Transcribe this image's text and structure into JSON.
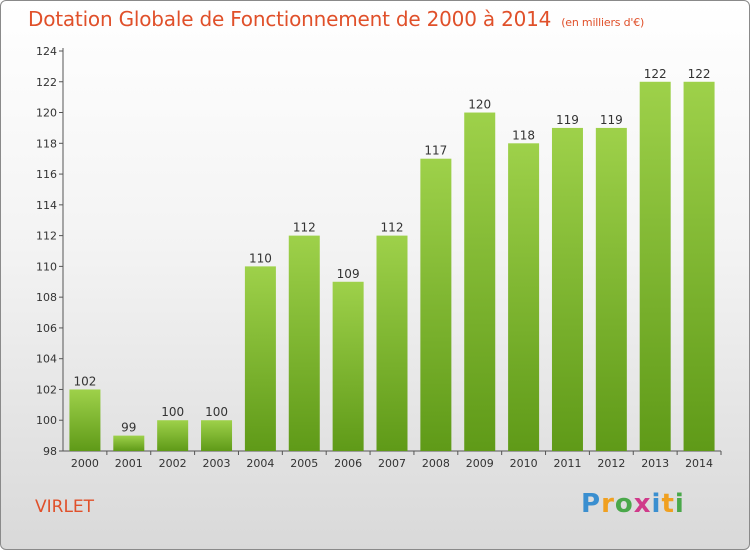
{
  "title": "Dotation Globale de Fonctionnement de 2000 à 2014",
  "subtitle": "(en milliers d'€)",
  "commune": "VIRLET",
  "logo": "Proxiti",
  "chart_data": {
    "type": "bar",
    "title": "Dotation Globale de Fonctionnement de 2000 à 2014",
    "subtitle": "(en milliers d'€)",
    "categories": [
      "2000",
      "2001",
      "2002",
      "2003",
      "2004",
      "2005",
      "2006",
      "2007",
      "2008",
      "2009",
      "2010",
      "2011",
      "2012",
      "2013",
      "2014"
    ],
    "values": [
      102,
      99,
      100,
      100,
      110,
      112,
      109,
      112,
      117,
      120,
      118,
      119,
      119,
      122,
      122
    ],
    "ylim": [
      98,
      124
    ],
    "yticks": [
      98,
      100,
      102,
      104,
      106,
      108,
      110,
      112,
      114,
      116,
      118,
      120,
      122,
      124
    ],
    "xlabel": "",
    "ylabel": "",
    "grid": false,
    "colors": {
      "bar_top": "#9ed14a",
      "bar_bottom": "#5f9a18",
      "text": "#333333",
      "accent": "#e0502a"
    }
  }
}
